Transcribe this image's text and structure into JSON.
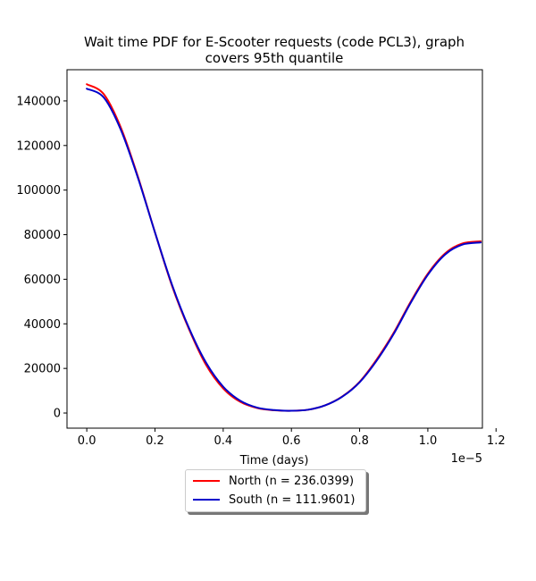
{
  "chart_data": {
    "type": "line",
    "title": "Wait time PDF for E-Scooter  requests (code PCL3), graph\ncovers 95th quantile",
    "xlabel": "Time (days)",
    "ylabel": "",
    "x_offset_label": "1e−5",
    "xlim": [
      -0.058,
      1.16
    ],
    "ylim": [
      -6800,
      154000
    ],
    "x_ticks": [
      0.0,
      0.2,
      0.4,
      0.6,
      0.8,
      1.0,
      1.2
    ],
    "x_tick_labels": [
      "0.0",
      "0.2",
      "0.4",
      "0.6",
      "0.8",
      "1.0",
      "1.2"
    ],
    "y_ticks": [
      0,
      20000,
      40000,
      60000,
      80000,
      100000,
      120000,
      140000
    ],
    "y_tick_labels": [
      "0",
      "20000",
      "40000",
      "60000",
      "80000",
      "100000",
      "120000",
      "140000"
    ],
    "grid": false,
    "legend_position": "bottom-center",
    "series": [
      {
        "name": "North (n = 236.0399)",
        "color": "#ff0000",
        "x": [
          0.0,
          0.05,
          0.1,
          0.15,
          0.2,
          0.25,
          0.3,
          0.35,
          0.4,
          0.45,
          0.5,
          0.55,
          0.6,
          0.65,
          0.7,
          0.75,
          0.8,
          0.85,
          0.9,
          0.95,
          1.0,
          1.05,
          1.1,
          1.155
        ],
        "y": [
          147500,
          143000,
          128000,
          106000,
          81000,
          57000,
          37500,
          21500,
          11000,
          5000,
          2200,
          1200,
          1000,
          1500,
          3500,
          7500,
          14000,
          24000,
          36000,
          50000,
          62500,
          71500,
          76000,
          77000
        ]
      },
      {
        "name": "South (n = 111.9601)",
        "color": "#0000cc",
        "x": [
          0.0,
          0.05,
          0.1,
          0.15,
          0.2,
          0.25,
          0.3,
          0.35,
          0.4,
          0.45,
          0.5,
          0.55,
          0.6,
          0.65,
          0.7,
          0.75,
          0.8,
          0.85,
          0.9,
          0.95,
          1.0,
          1.05,
          1.1,
          1.155
        ],
        "y": [
          145500,
          141500,
          127000,
          105500,
          81000,
          57500,
          38000,
          22500,
          11800,
          5500,
          2400,
          1300,
          1000,
          1500,
          3500,
          7400,
          13800,
          23500,
          35500,
          49500,
          62000,
          71000,
          75500,
          76500
        ]
      }
    ]
  }
}
